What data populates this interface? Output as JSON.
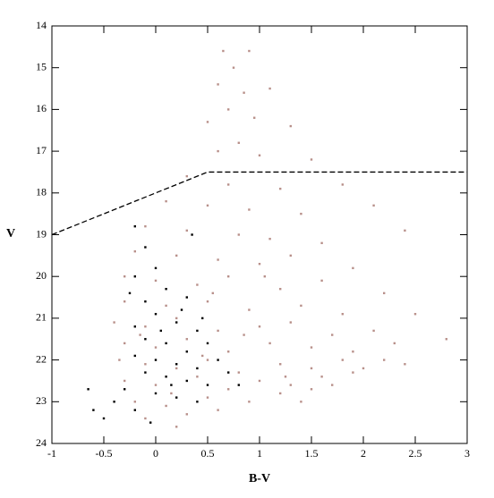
{
  "chart_data": {
    "type": "scatter",
    "x_label": "B-V",
    "y_label": "V",
    "xlim": [
      -1,
      3
    ],
    "xticks": [
      -1,
      -0.5,
      0,
      0.5,
      1,
      1.5,
      2,
      2.5,
      3
    ],
    "ylim": [
      14,
      24
    ],
    "yticks": [
      14,
      15,
      16,
      17,
      18,
      19,
      20,
      21,
      22,
      23,
      24
    ],
    "y_inverted": true,
    "grid": false,
    "boundary": {
      "x": [
        -1,
        0.5,
        3
      ],
      "y": [
        19,
        17.5,
        17.5
      ],
      "color": "#000000",
      "dashed": true
    },
    "series": [
      {
        "color": "#b8908a",
        "x": [
          0.65,
          0.9,
          0.75,
          0.6,
          0.85,
          1.1,
          0.7,
          0.5,
          0.95,
          1.3,
          0.8,
          0.6,
          1.0,
          1.5,
          0.3,
          0.7,
          1.2,
          1.8,
          0.1,
          0.5,
          0.9,
          1.4,
          2.1,
          -0.1,
          0.3,
          0.8,
          1.1,
          1.6,
          2.4,
          -0.2,
          0.2,
          0.6,
          1.0,
          1.3,
          1.9,
          -0.3,
          0.0,
          0.4,
          0.7,
          1.2,
          1.6,
          2.2,
          -0.3,
          0.1,
          0.5,
          0.9,
          1.4,
          1.8,
          2.5,
          -0.4,
          -0.1,
          0.2,
          0.6,
          1.0,
          1.3,
          1.7,
          2.1,
          2.8,
          -0.3,
          0.0,
          0.3,
          0.7,
          1.1,
          1.5,
          1.9,
          2.3,
          -0.35,
          -0.1,
          0.2,
          0.5,
          0.8,
          1.2,
          1.5,
          1.8,
          2.0,
          -0.3,
          0.0,
          0.4,
          0.7,
          1.0,
          1.3,
          1.6,
          1.9,
          -0.2,
          0.1,
          0.5,
          0.9,
          1.2,
          1.5,
          -0.1,
          0.3,
          0.6,
          0.2,
          1.4,
          2.2,
          2.4,
          1.7,
          0.45,
          0.85,
          1.25,
          0.15,
          -0.15,
          0.55,
          1.05
        ],
        "y": [
          14.6,
          14.6,
          15.0,
          15.4,
          15.6,
          15.5,
          16.0,
          16.3,
          16.2,
          16.4,
          16.8,
          17.0,
          17.1,
          17.2,
          17.6,
          17.8,
          17.9,
          17.8,
          18.2,
          18.3,
          18.4,
          18.5,
          18.3,
          18.8,
          18.9,
          19.0,
          19.1,
          19.2,
          18.9,
          19.4,
          19.5,
          19.6,
          19.7,
          19.5,
          19.8,
          20.0,
          20.1,
          20.2,
          20.0,
          20.3,
          20.1,
          20.4,
          20.6,
          20.7,
          20.6,
          20.8,
          20.7,
          20.9,
          20.9,
          21.1,
          21.2,
          21.0,
          21.3,
          21.2,
          21.1,
          21.4,
          21.3,
          21.5,
          21.6,
          21.7,
          21.5,
          21.8,
          21.6,
          21.7,
          21.8,
          21.6,
          22.0,
          22.1,
          22.2,
          22.0,
          22.3,
          22.1,
          22.2,
          22.0,
          22.2,
          22.5,
          22.6,
          22.4,
          22.7,
          22.5,
          22.6,
          22.4,
          22.3,
          23.0,
          23.1,
          22.9,
          23.0,
          22.8,
          22.7,
          23.4,
          23.3,
          23.2,
          23.6,
          23.0,
          22.0,
          22.1,
          22.6,
          21.9,
          21.4,
          22.4,
          22.8,
          21.4,
          20.4,
          20.0
        ]
      },
      {
        "color": "#000000",
        "x": [
          -0.2,
          -0.1,
          0.0,
          -0.2,
          0.1,
          -0.1,
          0.3,
          0.0,
          -0.2,
          0.2,
          0.4,
          -0.1,
          0.1,
          0.3,
          0.5,
          -0.2,
          0.0,
          0.2,
          0.4,
          0.6,
          -0.1,
          0.1,
          0.3,
          0.5,
          -0.3,
          0.0,
          0.2,
          0.4,
          -0.2,
          -0.65,
          -0.6,
          -0.5,
          -0.4,
          0.35,
          0.15,
          0.45,
          -0.05,
          0.25,
          0.7,
          0.8,
          -0.25,
          0.05
        ],
        "y": [
          18.8,
          19.3,
          19.8,
          20.0,
          20.3,
          20.6,
          20.5,
          20.9,
          21.2,
          21.1,
          21.3,
          21.5,
          21.6,
          21.8,
          21.6,
          21.9,
          22.0,
          22.1,
          22.2,
          22.0,
          22.3,
          22.4,
          22.5,
          22.6,
          22.7,
          22.8,
          22.9,
          23.0,
          23.2,
          22.7,
          23.2,
          23.4,
          23.0,
          19.0,
          22.6,
          21.0,
          23.5,
          20.8,
          22.3,
          22.6,
          20.4,
          21.3
        ]
      }
    ]
  }
}
